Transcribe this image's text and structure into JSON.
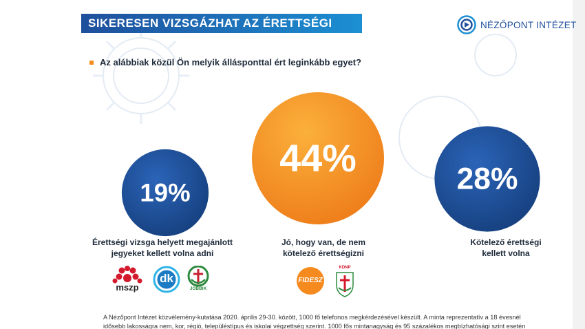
{
  "header": {
    "title": "SIKERESEN VIZSGÁZHAT AZ ÉRETTSÉGI",
    "brand": "NÉZŐPONT INTÉZET"
  },
  "question": "Az alábbiak közül Ön melyik állásponttal ért leginkább egyet?",
  "chart_data": {
    "type": "bubble",
    "title": "SIKERESEN VIZSGÁZHAT AZ ÉRETTSÉGI",
    "subtitle": "Az alábbiak közül Ön melyik állásponttal ért leginkább egyet?",
    "categories": [
      "Érettségi vizsga helyett megajánlott jegyeket kellett volna adni",
      "Jó, hogy van, de nem kötelező érettségizni",
      "Kötelező érettségi kellett volna"
    ],
    "values": [
      19,
      44,
      28
    ],
    "unit": "%",
    "value_labels": [
      "19%",
      "44%",
      "28%"
    ],
    "colors": [
      "#1f4f9c",
      "#f28c1e",
      "#1f4f9c"
    ]
  },
  "options": [
    {
      "value": "19%",
      "caption_line1": "Érettségi vizsga helyett megajánlott",
      "caption_line2": "jegyeket kellett volna adni",
      "parties": [
        "mszp",
        "dk",
        "JOBBIK"
      ]
    },
    {
      "value": "44%",
      "caption_line1": "Jó, hogy van, de nem",
      "caption_line2": "kötelező érettségizni",
      "parties": [
        "FIDESZ",
        "KDNP"
      ]
    },
    {
      "value": "28%",
      "caption_line1": "Kötelező érettségi",
      "caption_line2": "kellett volna",
      "parties": []
    }
  ],
  "footnote_line1": "A Nézőpont Intézet közvélemény-kutatása 2020. április 29-30. között, 1000 fő telefonos megkérdezésével készült. A minta reprezentatív a 18 évesnél",
  "footnote_line2": "idősebb lakosságra nem, kor, régió, településtípus és iskolai végzettség szerint. 1000 fős mintanagyság és 95 százalékos megbízhatósági szint esetén",
  "colors": {
    "navy": "#1f4f9c",
    "orange": "#f28c1e",
    "text": "#1e2a3a"
  }
}
